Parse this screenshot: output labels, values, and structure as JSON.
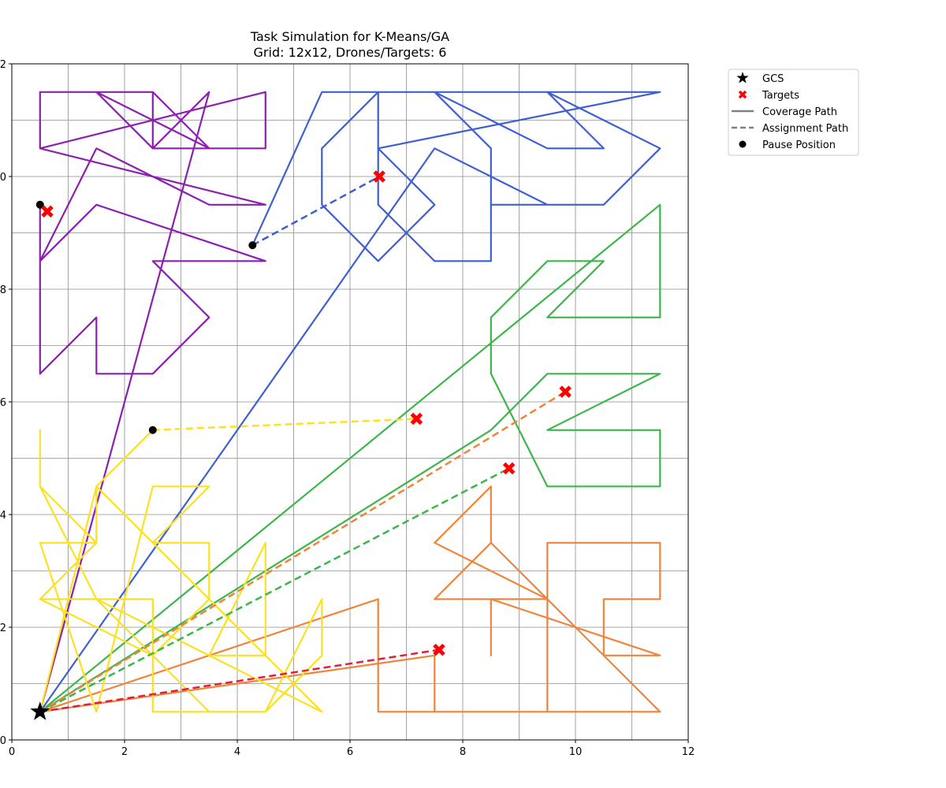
{
  "chart_data": {
    "type": "line",
    "title": "Task Simulation for K-Means/GA",
    "subtitle": "Grid: 12x12, Drones/Targets: 6",
    "xlim": [
      0,
      12
    ],
    "ylim": [
      0,
      12
    ],
    "xticks": [
      0,
      2,
      4,
      6,
      8,
      10,
      12
    ],
    "yticks": [
      0,
      2,
      4,
      6,
      8,
      10,
      12
    ],
    "grid": true,
    "grid_step": 1,
    "legend_placement": "outside top-right",
    "legend": [
      {
        "label": "GCS",
        "marker": "star",
        "color": "#000000"
      },
      {
        "label": "Targets",
        "marker": "x",
        "color": "#ff0000"
      },
      {
        "label": "Coverage Path",
        "marker": "solid-line",
        "color": "#808080"
      },
      {
        "label": "Assignment Path",
        "marker": "dashed-line",
        "color": "#808080"
      },
      {
        "label": "Pause Position",
        "marker": "dot",
        "color": "#000000"
      }
    ],
    "gcs": {
      "x": 0.5,
      "y": 0.5
    },
    "targets": [
      {
        "x": 0.63,
        "y": 9.38
      },
      {
        "x": 6.52,
        "y": 10.0
      },
      {
        "x": 7.18,
        "y": 5.7
      },
      {
        "x": 9.82,
        "y": 6.18
      },
      {
        "x": 8.82,
        "y": 4.82
      },
      {
        "x": 7.58,
        "y": 1.6
      }
    ],
    "pause_positions": [
      {
        "x": 0.5,
        "y": 9.5
      },
      {
        "x": 4.27,
        "y": 8.78
      },
      {
        "x": 2.5,
        "y": 5.5
      }
    ],
    "series": [
      {
        "color": "#8b1fb0",
        "coverage_path": [
          [
            0.5,
            0.5
          ],
          [
            3.5,
            11.5
          ],
          [
            2.5,
            10.5
          ],
          [
            1.5,
            11.5
          ],
          [
            0.5,
            11.5
          ],
          [
            0.5,
            10.5
          ],
          [
            4.5,
            11.5
          ],
          [
            4.5,
            10.5
          ],
          [
            2.5,
            10.5
          ],
          [
            2.5,
            11.5
          ],
          [
            1.5,
            11.5
          ],
          [
            3.5,
            10.5
          ],
          [
            2.5,
            11.5
          ],
          [
            0.5,
            11.5
          ],
          [
            0.5,
            10.5
          ],
          [
            4.5,
            9.5
          ],
          [
            3.5,
            9.5
          ],
          [
            1.5,
            10.5
          ],
          [
            0.5,
            8.5
          ],
          [
            1.5,
            9.5
          ],
          [
            4.5,
            8.5
          ],
          [
            2.5,
            8.5
          ],
          [
            3.5,
            7.5
          ],
          [
            2.5,
            6.5
          ],
          [
            1.5,
            6.5
          ],
          [
            1.5,
            7.5
          ],
          [
            0.5,
            6.5
          ],
          [
            0.5,
            8.5
          ],
          [
            0.5,
            7.5
          ],
          [
            0.5,
            9.5
          ]
        ],
        "assignment_path": []
      },
      {
        "color": "#3e5fd2",
        "coverage_path": [
          [
            0.5,
            0.5
          ],
          [
            7.5,
            10.5
          ],
          [
            9.5,
            9.5
          ],
          [
            8.5,
            9.5
          ],
          [
            8.5,
            10.5
          ],
          [
            7.5,
            11.5
          ],
          [
            6.5,
            11.5
          ],
          [
            6.5,
            9.5
          ],
          [
            7.5,
            8.5
          ],
          [
            8.5,
            8.5
          ],
          [
            8.5,
            9.5
          ],
          [
            10.5,
            9.5
          ],
          [
            11.5,
            10.5
          ],
          [
            9.5,
            11.5
          ],
          [
            11.5,
            11.5
          ],
          [
            6.5,
            10.5
          ],
          [
            7.5,
            9.5
          ],
          [
            6.5,
            8.5
          ],
          [
            5.5,
            9.5
          ],
          [
            5.5,
            10.5
          ],
          [
            6.5,
            11.5
          ],
          [
            9.5,
            11.5
          ],
          [
            10.5,
            10.5
          ],
          [
            9.5,
            10.5
          ],
          [
            7.5,
            11.5
          ],
          [
            5.5,
            11.5
          ],
          [
            4.27,
            8.78
          ]
        ],
        "assignment_path": [
          [
            4.27,
            8.78
          ],
          [
            6.52,
            10.0
          ]
        ]
      },
      {
        "color": "#3cb64a",
        "coverage_path": [
          [
            0.5,
            0.5
          ],
          [
            8.5,
            5.5
          ],
          [
            9.5,
            6.5
          ],
          [
            11.5,
            6.5
          ],
          [
            9.5,
            5.5
          ],
          [
            11.5,
            5.5
          ],
          [
            11.5,
            4.5
          ],
          [
            9.5,
            4.5
          ],
          [
            8.5,
            6.5
          ],
          [
            8.5,
            7.5
          ],
          [
            9.5,
            8.5
          ],
          [
            10.5,
            8.5
          ],
          [
            9.5,
            7.5
          ],
          [
            11.5,
            7.5
          ],
          [
            11.5,
            9.5
          ],
          [
            0.5,
            0.5
          ]
        ],
        "assignment_path": [
          [
            0.5,
            0.5
          ],
          [
            8.82,
            4.82
          ]
        ]
      },
      {
        "color": "#f0843a",
        "coverage_path": [
          [
            0.5,
            0.5
          ],
          [
            6.5,
            2.5
          ],
          [
            6.5,
            0.5
          ],
          [
            9.5,
            0.5
          ],
          [
            9.5,
            3.5
          ],
          [
            11.5,
            3.5
          ],
          [
            11.5,
            2.5
          ],
          [
            10.5,
            2.5
          ],
          [
            10.5,
            1.5
          ],
          [
            11.5,
            1.5
          ],
          [
            8.5,
            2.5
          ],
          [
            8.5,
            1.5
          ],
          [
            8.5,
            2.5
          ],
          [
            9.5,
            2.5
          ],
          [
            8.5,
            3.5
          ],
          [
            7.5,
            2.5
          ],
          [
            9.5,
            2.5
          ],
          [
            7.5,
            3.5
          ],
          [
            8.5,
            4.5
          ],
          [
            8.5,
            3.5
          ],
          [
            9.5,
            2.5
          ],
          [
            11.5,
            0.5
          ],
          [
            7.5,
            0.5
          ],
          [
            7.5,
            1.5
          ],
          [
            0.5,
            0.5
          ]
        ],
        "assignment_path": [
          [
            0.5,
            0.5
          ],
          [
            9.82,
            6.18
          ]
        ]
      },
      {
        "color": "#fde020",
        "coverage_path": [
          [
            0.5,
            0.5
          ],
          [
            1.5,
            4.5
          ],
          [
            1.5,
            3.5
          ],
          [
            0.5,
            2.5
          ],
          [
            2.5,
            2.5
          ],
          [
            2.5,
            0.5
          ],
          [
            4.5,
            0.5
          ],
          [
            5.5,
            1.5
          ],
          [
            5.5,
            2.5
          ],
          [
            4.5,
            0.5
          ],
          [
            3.5,
            0.5
          ],
          [
            2.5,
            1.5
          ],
          [
            0.5,
            2.5
          ],
          [
            1.5,
            2.5
          ],
          [
            2.5,
            1.5
          ],
          [
            3.5,
            2.5
          ],
          [
            3.5,
            3.5
          ],
          [
            2.5,
            3.5
          ],
          [
            3.5,
            4.5
          ],
          [
            2.5,
            4.5
          ],
          [
            1.5,
            0.5
          ],
          [
            0.5,
            3.5
          ],
          [
            1.5,
            3.5
          ],
          [
            0.5,
            4.5
          ],
          [
            0.5,
            5.5
          ],
          [
            0.5,
            4.5
          ],
          [
            1.5,
            2.5
          ],
          [
            3.5,
            1.5
          ],
          [
            4.5,
            1.5
          ],
          [
            4.5,
            3.5
          ],
          [
            3.5,
            1.5
          ],
          [
            5.5,
            0.5
          ],
          [
            1.5,
            4.5
          ],
          [
            2.5,
            5.5
          ]
        ],
        "assignment_path": [
          [
            2.5,
            5.5
          ],
          [
            7.18,
            5.7
          ]
        ]
      },
      {
        "color": "#e0203c",
        "coverage_path": [],
        "assignment_path": [
          [
            0.5,
            0.5
          ],
          [
            7.58,
            1.6
          ]
        ]
      }
    ]
  }
}
